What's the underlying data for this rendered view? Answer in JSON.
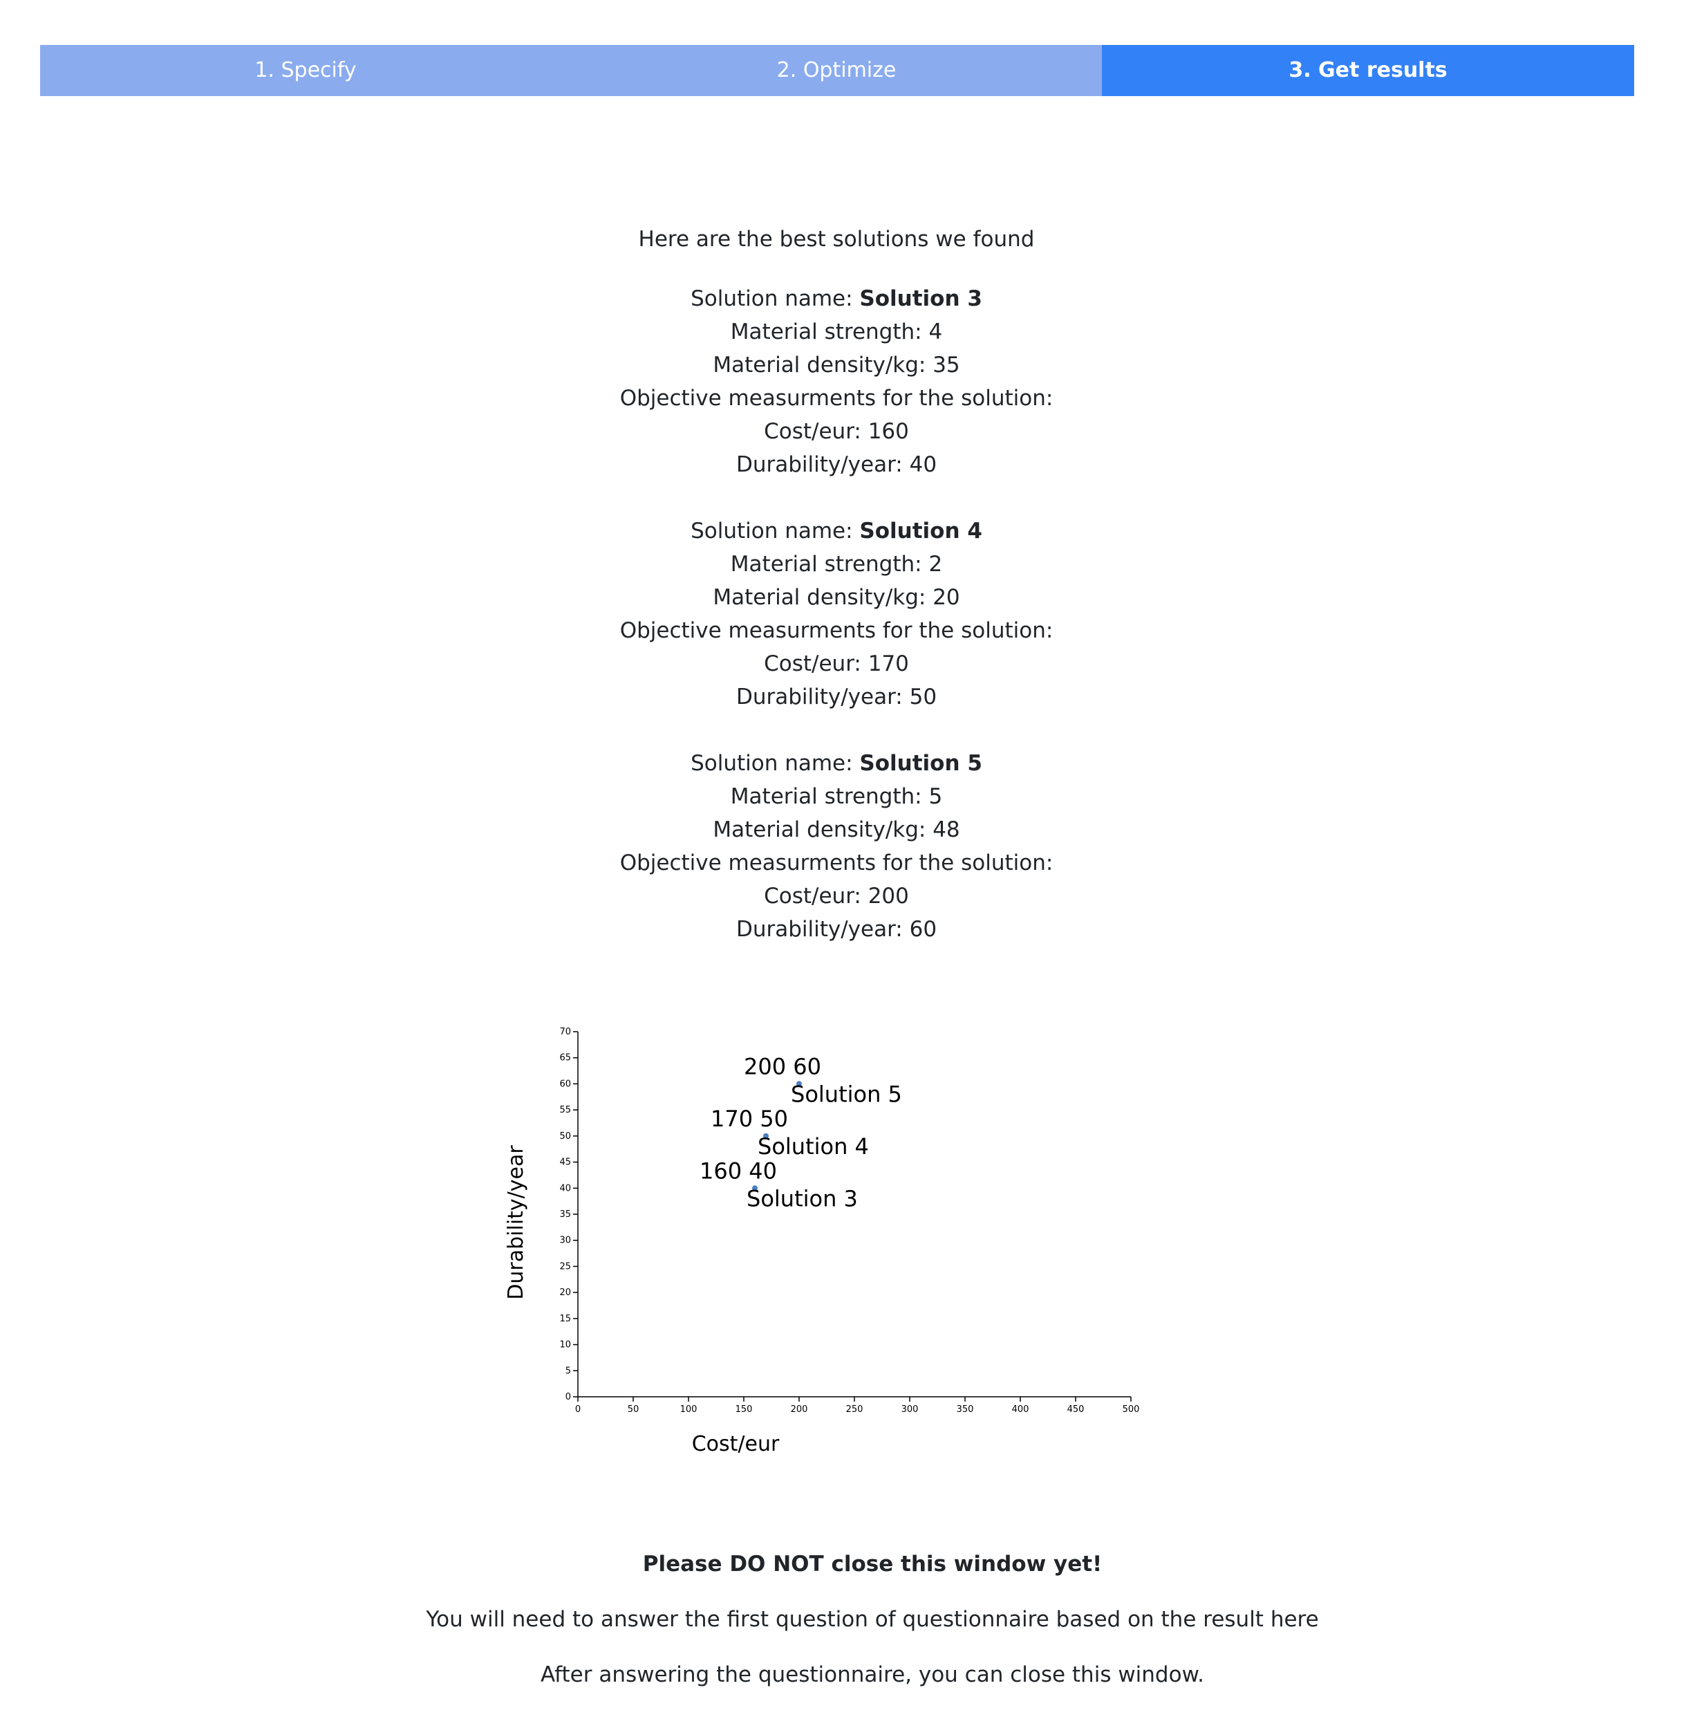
{
  "steps": [
    {
      "label": "1. Specify",
      "active": false
    },
    {
      "label": "2. Optimize",
      "active": false
    },
    {
      "label": "3. Get results",
      "active": true
    }
  ],
  "intro": "Here are the best solutions we found",
  "labels": {
    "solution_name": "Solution name: ",
    "strength": "Material strength: ",
    "density": "Material density/kg: ",
    "objective": "Objective measurments for the solution:",
    "cost": "Cost/eur: ",
    "durability": "Durability/year: "
  },
  "solutions": [
    {
      "name": "Solution 3",
      "strength": "4",
      "density": "35",
      "cost": "160",
      "durability": "40"
    },
    {
      "name": "Solution 4",
      "strength": "2",
      "density": "20",
      "cost": "170",
      "durability": "50"
    },
    {
      "name": "Solution 5",
      "strength": "5",
      "density": "48",
      "cost": "200",
      "durability": "60"
    }
  ],
  "chart_data": {
    "type": "scatter",
    "xlabel": "Cost/eur",
    "ylabel": "Durability/year",
    "xlim": [
      0,
      500
    ],
    "ylim": [
      0,
      70
    ],
    "x_ticks": [
      0,
      50,
      100,
      150,
      200,
      250,
      300,
      350,
      400,
      450,
      500
    ],
    "y_ticks": [
      0,
      5,
      10,
      15,
      20,
      25,
      30,
      35,
      40,
      45,
      50,
      55,
      60,
      65,
      70
    ],
    "grid": false,
    "points": [
      {
        "name": "Solution 3",
        "x": 160,
        "y": 40,
        "value_label": "160  40"
      },
      {
        "name": "Solution 4",
        "x": 170,
        "y": 50,
        "value_label": "170  50"
      },
      {
        "name": "Solution 5",
        "x": 200,
        "y": 60,
        "value_label": "200 60"
      }
    ],
    "point_color": "#4a7fc1"
  },
  "footer": {
    "warning": "Please DO NOT close this window yet!",
    "instruction": "You will need to answer the first question of questionnaire based on the result here",
    "closing": "After answering the questionnaire, you can close this window."
  }
}
